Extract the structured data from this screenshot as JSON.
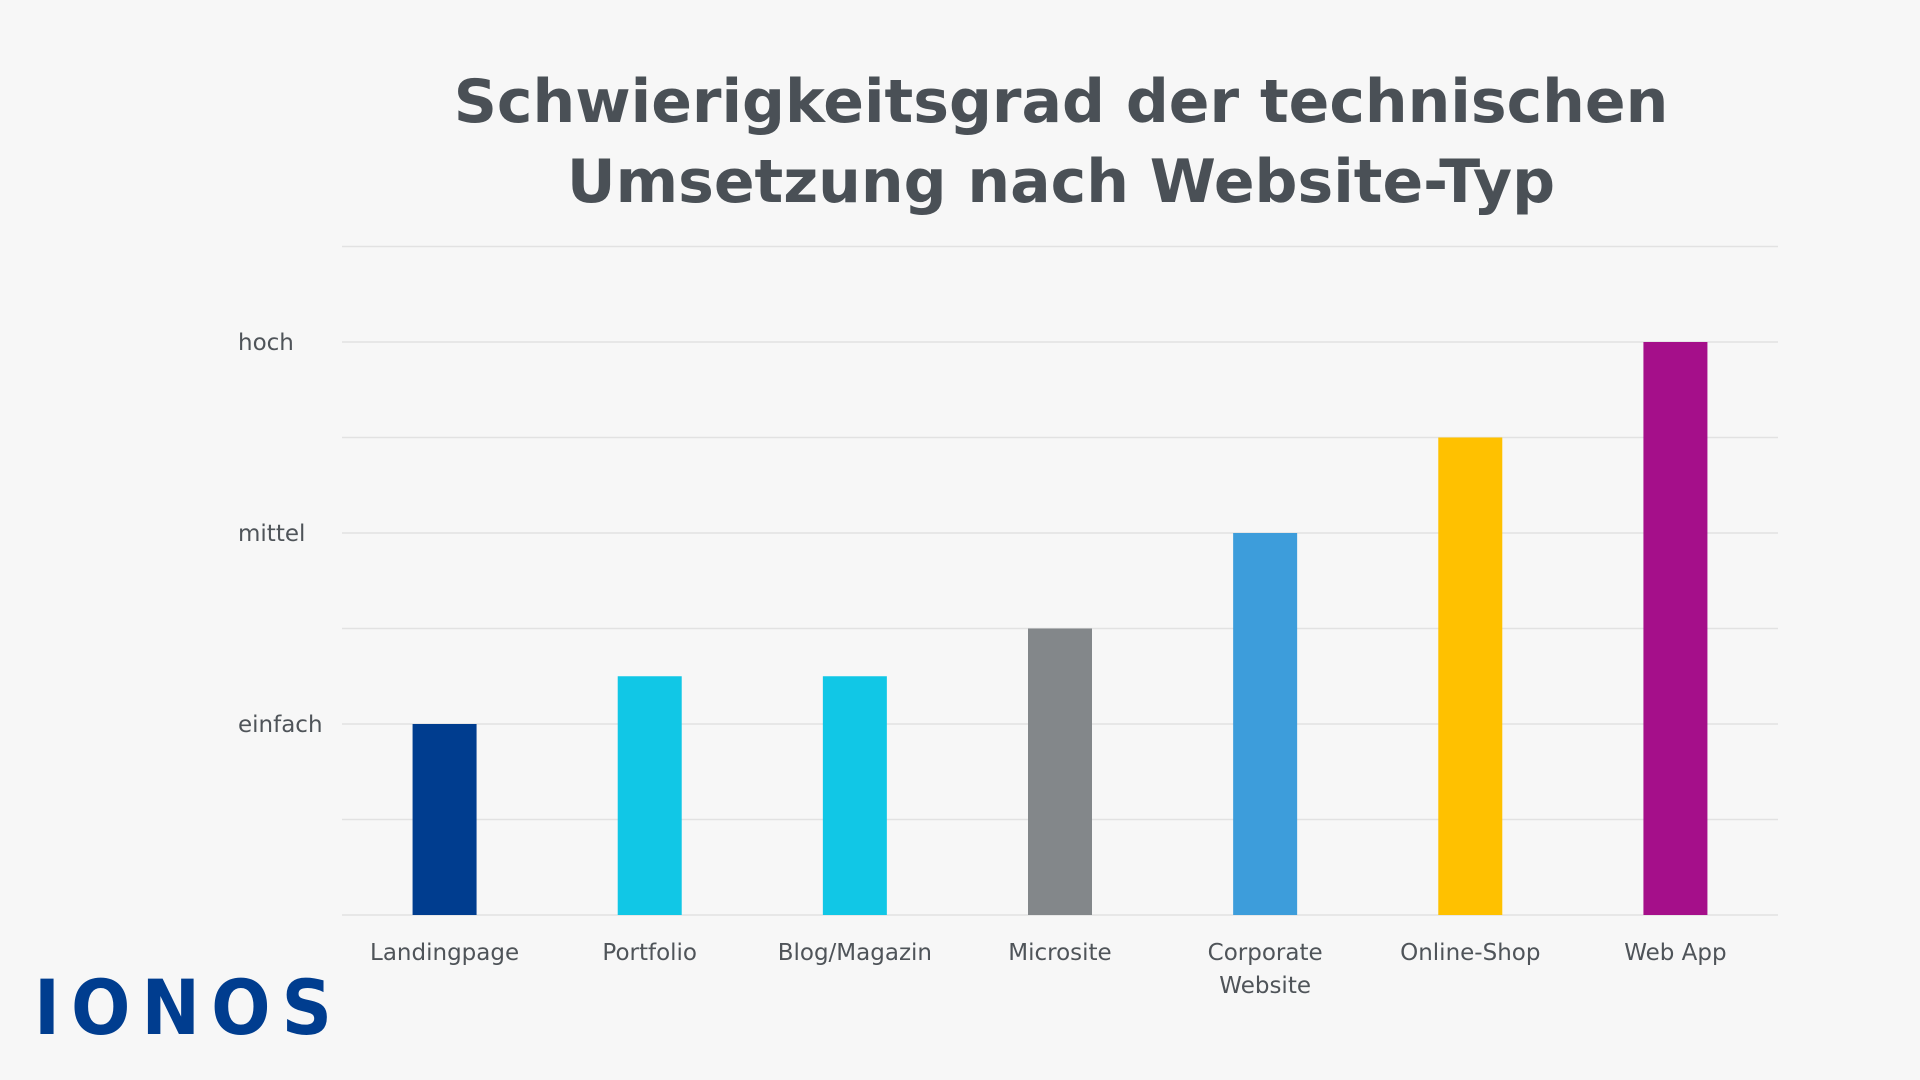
{
  "chart_data": {
    "type": "bar",
    "title_line1": "Schwierigkeitsgrad der technischen",
    "title_line2": "Umsetzung nach Website-Typ",
    "categories": [
      [
        "Landingpage"
      ],
      [
        "Portfolio"
      ],
      [
        "Blog/Magazin"
      ],
      [
        "Microsite"
      ],
      [
        "Corporate",
        "Website"
      ],
      [
        "Online-Shop"
      ],
      [
        "Web App"
      ]
    ],
    "values": [
      2,
      2.5,
      2.5,
      3,
      4,
      5,
      6
    ],
    "colors": [
      "#003d8f",
      "#11c7e6",
      "#11c7e6",
      "#83878a",
      "#3d9ddb",
      "#ffc100",
      "#a50f8a"
    ],
    "ylim": [
      0,
      7
    ],
    "y_tick_labels": [
      {
        "value": 2,
        "label": "einfach"
      },
      {
        "value": 4,
        "label": "mittel"
      },
      {
        "value": 6,
        "label": "hoch"
      }
    ],
    "grid": true
  },
  "brand": {
    "logo_text": "IONOS",
    "logo_color": "#003d8f"
  }
}
